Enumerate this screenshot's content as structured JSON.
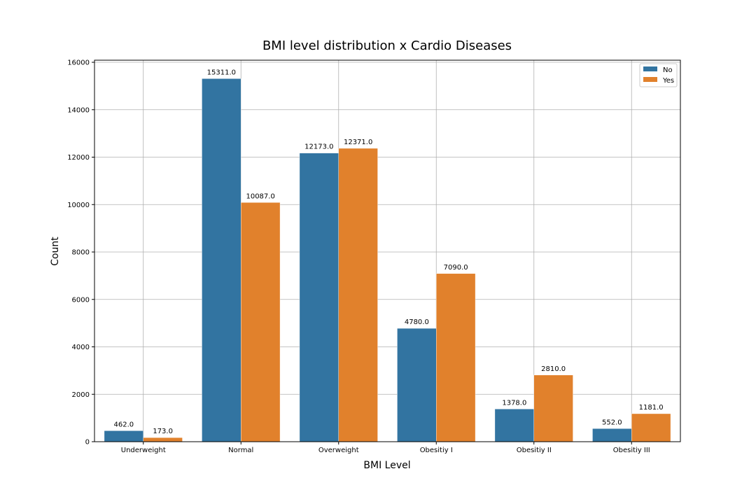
{
  "chart_data": {
    "type": "bar",
    "title": "BMI level distribution x Cardio Diseases",
    "xlabel": "BMI Level",
    "ylabel": "Count",
    "categories": [
      "Underweight",
      "Normal",
      "Overweight",
      "Obesitiy I",
      "Obesitiy II",
      "Obesitiy III"
    ],
    "series": [
      {
        "name": "No",
        "color": "#3274a1",
        "values": [
          462,
          15311,
          12173,
          4780,
          1378,
          552
        ],
        "labels": [
          "462.0",
          "15311.0",
          "12173.0",
          "4780.0",
          "1378.0",
          "552.0"
        ]
      },
      {
        "name": "Yes",
        "color": "#e1812c",
        "values": [
          173,
          10087,
          12371,
          7090,
          2810,
          1181
        ],
        "labels": [
          "173.0",
          "10087.0",
          "12371.0",
          "7090.0",
          "2810.0",
          "1181.0"
        ]
      }
    ],
    "ylim": [
      0,
      16000
    ],
    "yticks": [
      0,
      2000,
      4000,
      6000,
      8000,
      10000,
      12000,
      14000,
      16000
    ],
    "yticks_labels": [
      "0",
      "2000",
      "4000",
      "6000",
      "8000",
      "10000",
      "12000",
      "14000",
      "16000"
    ],
    "grid": true,
    "legend": "top-right"
  }
}
